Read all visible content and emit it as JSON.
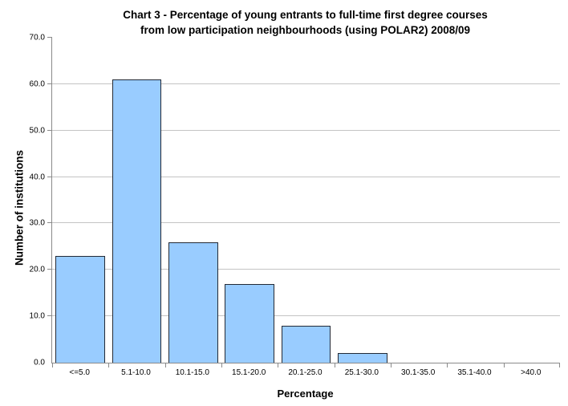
{
  "chart_data": {
    "type": "bar",
    "title": "Chart 3 - Percentage of young entrants to full-time first degree courses from low participation neighbourhoods (using POLAR2) 2008/09",
    "title_lines": [
      "Chart 3 - Percentage of young entrants to full-time first degree courses",
      "from low participation neighbourhoods (using POLAR2) 2008/09"
    ],
    "xlabel": "Percentage",
    "ylabel": "Number of institutions",
    "categories": [
      "<=5.0",
      "5.1-10.0",
      "10.1-15.0",
      "15.1-20.0",
      "20.1-25.0",
      "25.1-30.0",
      "30.1-35.0",
      "35.1-40.0",
      ">40.0"
    ],
    "values": [
      23,
      61,
      26,
      17,
      8,
      2,
      0,
      0,
      0
    ],
    "ylim": [
      0,
      70
    ],
    "ytick_step": 10,
    "y_tick_labels": [
      "0.0",
      "10.0",
      "20.0",
      "30.0",
      "40.0",
      "50.0",
      "60.0",
      "70.0"
    ],
    "grid": "horizontal-only",
    "legend": "none",
    "colors": {
      "bar_fill": "#99CCFF",
      "bar_border": "#232A36",
      "gridline": "#C4C4C4",
      "axis": "#8A8A8A",
      "background": "#FFFFFF",
      "text": "#000000"
    }
  }
}
